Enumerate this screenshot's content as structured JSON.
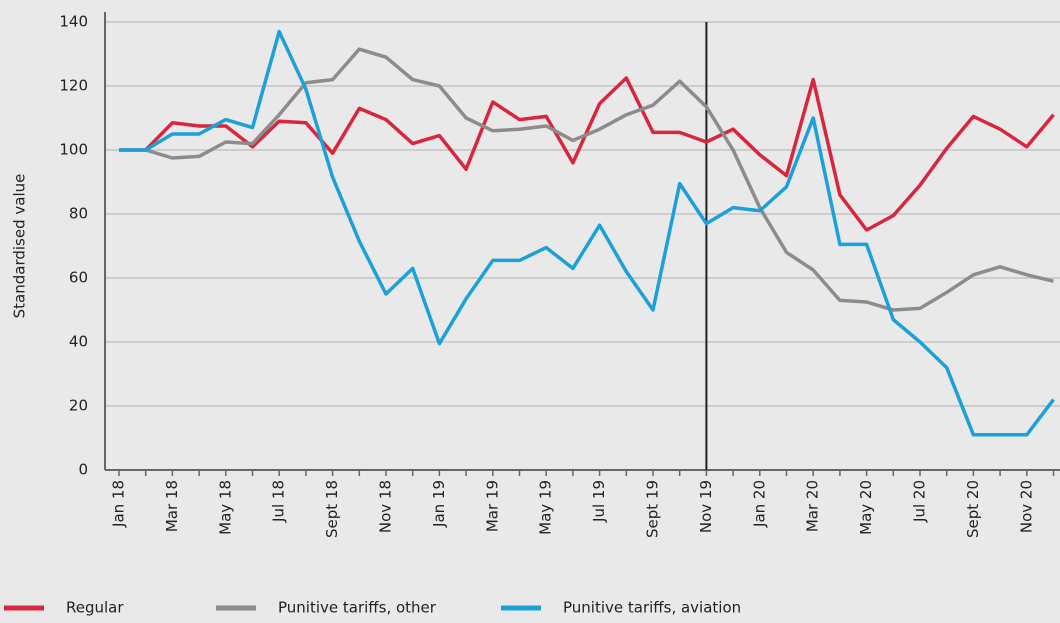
{
  "chart_data": {
    "type": "line",
    "y_axis_label": "Standardised value",
    "categories": [
      "Jan 18",
      null,
      "Mar 18",
      null,
      "May 18",
      null,
      "Jul 18",
      null,
      "Sept 18",
      null,
      "Nov 18",
      null,
      "Jan 19",
      null,
      "Mar 19",
      null,
      "May 19",
      null,
      "Jul 19",
      null,
      "Sept 19",
      null,
      "Nov 19",
      null,
      "Jan 20",
      null,
      "Mar 20",
      null,
      "May 20",
      null,
      "Jul 20",
      null,
      "Sept 20",
      null,
      "Nov 20",
      null
    ],
    "series": [
      {
        "name": "Regular",
        "color": "#d7263d",
        "values": [
          100,
          100,
          108.5,
          107.5,
          107.5,
          101,
          109,
          108.5,
          99,
          113,
          109.5,
          102,
          104.5,
          94,
          115,
          109.5,
          110.5,
          96,
          114.5,
          122.5,
          105.5,
          105.5,
          102.5,
          106.5,
          98.5,
          92,
          122,
          86,
          75,
          79.5,
          89,
          100.5,
          110.5,
          106.5,
          101,
          111
        ]
      },
      {
        "name": "Punitive tariffs, other",
        "color": "#8c8c8c",
        "values": [
          100,
          100,
          97.5,
          98,
          102.5,
          102,
          111,
          121,
          122,
          131.5,
          129,
          122,
          120,
          110,
          106,
          106.5,
          107.5,
          103,
          106.5,
          111,
          114,
          121.5,
          113.5,
          100,
          82,
          68,
          62.5,
          53,
          52.5,
          50,
          50.5,
          55.5,
          61,
          63.5,
          61,
          59
        ]
      },
      {
        "name": "Punitive tariffs, aviation",
        "color": "#1ba1d8",
        "values": [
          100,
          100,
          105,
          105,
          109.5,
          107,
          137,
          119,
          91.5,
          71.5,
          55,
          63,
          39.5,
          53.5,
          65.5,
          65.5,
          69.5,
          63,
          76.5,
          62,
          50,
          89.5,
          77,
          82,
          81,
          88.5,
          110,
          70.5,
          70.5,
          47,
          40,
          32,
          11,
          11,
          11,
          22
        ]
      }
    ],
    "vertical_line_at": "Nov 19",
    "ylim": [
      0,
      140
    ],
    "yticks": [
      0,
      20,
      40,
      60,
      80,
      100,
      120,
      140
    ],
    "grid": true
  }
}
